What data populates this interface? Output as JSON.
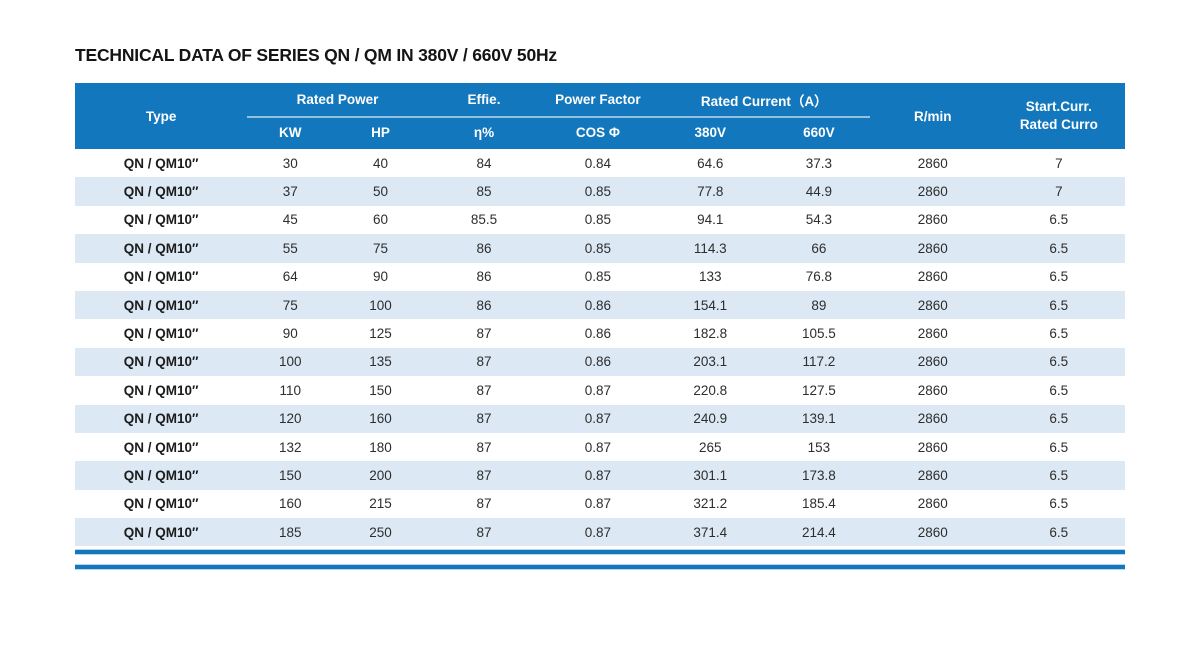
{
  "title": "TECHNICAL DATA OF SERIES QN / QM IN 380V / 660V 50Hz",
  "table": {
    "colors": {
      "header_bg": "#1377bd",
      "row_alt": "#dce9f5",
      "accent_line": "#1377bd",
      "header_text": "#ffffff",
      "body_text": "#2d2d2d"
    },
    "header": {
      "type": "Type",
      "rated_power": "Rated Power",
      "kw": "KW",
      "hp": "HP",
      "effie": "Effie.",
      "eta": "η%",
      "power_factor": "Power Factor",
      "cos_phi": "COS Φ",
      "rated_current": "Rated Current（A）",
      "v380": "380V",
      "v660": "660V",
      "rpm": "R/min",
      "start_curr_line1": "Start.Curr.",
      "start_curr_line2": "Rated Curro"
    },
    "rows": [
      {
        "type": "QN / QM10″",
        "kw": "30",
        "hp": "40",
        "eta": "84",
        "cos": "0.84",
        "a380": "64.6",
        "a660": "37.3",
        "rpm": "2860",
        "start": "7"
      },
      {
        "type": "QN / QM10″",
        "kw": "37",
        "hp": "50",
        "eta": "85",
        "cos": "0.85",
        "a380": "77.8",
        "a660": "44.9",
        "rpm": "2860",
        "start": "7"
      },
      {
        "type": "QN / QM10″",
        "kw": "45",
        "hp": "60",
        "eta": "85.5",
        "cos": "0.85",
        "a380": "94.1",
        "a660": "54.3",
        "rpm": "2860",
        "start": "6.5"
      },
      {
        "type": "QN / QM10″",
        "kw": "55",
        "hp": "75",
        "eta": "86",
        "cos": "0.85",
        "a380": "114.3",
        "a660": "66",
        "rpm": "2860",
        "start": "6.5"
      },
      {
        "type": "QN / QM10″",
        "kw": "64",
        "hp": "90",
        "eta": "86",
        "cos": "0.85",
        "a380": "133",
        "a660": "76.8",
        "rpm": "2860",
        "start": "6.5"
      },
      {
        "type": "QN / QM10″",
        "kw": "75",
        "hp": "100",
        "eta": "86",
        "cos": "0.86",
        "a380": "154.1",
        "a660": "89",
        "rpm": "2860",
        "start": "6.5"
      },
      {
        "type": "QN / QM10″",
        "kw": "90",
        "hp": "125",
        "eta": "87",
        "cos": "0.86",
        "a380": "182.8",
        "a660": "105.5",
        "rpm": "2860",
        "start": "6.5"
      },
      {
        "type": "QN / QM10″",
        "kw": "100",
        "hp": "135",
        "eta": "87",
        "cos": "0.86",
        "a380": "203.1",
        "a660": "117.2",
        "rpm": "2860",
        "start": "6.5"
      },
      {
        "type": "QN / QM10″",
        "kw": "110",
        "hp": "150",
        "eta": "87",
        "cos": "0.87",
        "a380": "220.8",
        "a660": "127.5",
        "rpm": "2860",
        "start": "6.5"
      },
      {
        "type": "QN / QM10″",
        "kw": "120",
        "hp": "160",
        "eta": "87",
        "cos": "0.87",
        "a380": "240.9",
        "a660": "139.1",
        "rpm": "2860",
        "start": "6.5"
      },
      {
        "type": "QN / QM10″",
        "kw": "132",
        "hp": "180",
        "eta": "87",
        "cos": "0.87",
        "a380": "265",
        "a660": "153",
        "rpm": "2860",
        "start": "6.5"
      },
      {
        "type": "QN / QM10″",
        "kw": "150",
        "hp": "200",
        "eta": "87",
        "cos": "0.87",
        "a380": "301.1",
        "a660": "173.8",
        "rpm": "2860",
        "start": "6.5"
      },
      {
        "type": "QN / QM10″",
        "kw": "160",
        "hp": "215",
        "eta": "87",
        "cos": "0.87",
        "a380": "321.2",
        "a660": "185.4",
        "rpm": "2860",
        "start": "6.5"
      },
      {
        "type": "QN / QM10″",
        "kw": "185",
        "hp": "250",
        "eta": "87",
        "cos": "0.87",
        "a380": "371.4",
        "a660": "214.4",
        "rpm": "2860",
        "start": "6.5"
      }
    ]
  }
}
